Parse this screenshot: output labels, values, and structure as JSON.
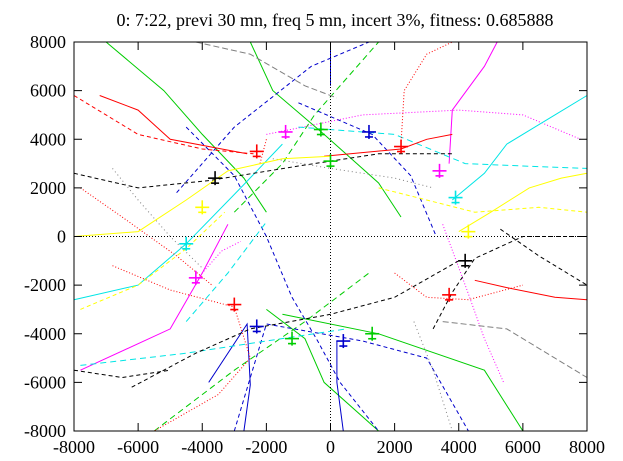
{
  "chart_data": {
    "type": "line",
    "title": "0: 7:22, previ 30 mn, freq 5 mn, incert 3%, fitness: 0.685888",
    "xlabel": "",
    "ylabel": "",
    "xlim": [
      -8000,
      8000
    ],
    "ylim": [
      -8000,
      8000
    ],
    "x_ticks": [
      "-8000",
      "-6000",
      "-4000",
      "-2000",
      "0",
      "2000",
      "4000",
      "6000",
      "8000"
    ],
    "y_ticks": [
      "8000",
      "6000",
      "4000",
      "2000",
      "0",
      "-2000",
      "-4000",
      "-6000",
      "-8000"
    ],
    "grid": false,
    "zero_axes": true,
    "series": [
      {
        "color": "#00cc00",
        "dash": "",
        "points": [
          [
            -7000,
            8000
          ],
          [
            -5200,
            6000
          ],
          [
            -4000,
            4200
          ],
          [
            -2700,
            2400
          ],
          [
            -2000,
            1000
          ]
        ]
      },
      {
        "color": "#00cc00",
        "dash": "",
        "points": [
          [
            -2500,
            8000
          ],
          [
            -1800,
            6000
          ],
          [
            -200,
            4200
          ],
          [
            1500,
            2200
          ],
          [
            2200,
            800
          ]
        ]
      },
      {
        "color": "#00cc00",
        "dash": "",
        "points": [
          [
            -2000,
            -3000
          ],
          [
            -800,
            -4200
          ],
          [
            -200,
            -6000
          ],
          [
            1500,
            -8000
          ]
        ]
      },
      {
        "color": "#00cc00",
        "dash": "",
        "points": [
          [
            -1500,
            -3200
          ],
          [
            1500,
            -4000
          ],
          [
            4800,
            -5500
          ],
          [
            6000,
            -8000
          ]
        ]
      },
      {
        "color": "#00cc00",
        "dash": "6,4",
        "points": [
          [
            -5500,
            -8000
          ],
          [
            -3000,
            -5500
          ],
          [
            -800,
            -3500
          ],
          [
            1200,
            -1500
          ]
        ]
      },
      {
        "color": "#00cc00",
        "dash": "6,4",
        "points": [
          [
            -3000,
            1000
          ],
          [
            -1500,
            3000
          ],
          [
            -500,
            5000
          ],
          [
            1500,
            8000
          ]
        ]
      },
      {
        "color": "#0000cc",
        "dash": "",
        "points": [
          [
            -3800,
            -6000
          ],
          [
            -2600,
            -3600
          ],
          [
            -2500,
            -6100
          ],
          [
            -2700,
            -8000
          ]
        ]
      },
      {
        "color": "#0000cc",
        "dash": "",
        "points": [
          [
            200,
            -4300
          ],
          [
            200,
            -6000
          ],
          [
            400,
            -8000
          ]
        ]
      },
      {
        "color": "#0000cc",
        "dash": "",
        "points": [
          [
            0,
            6200
          ],
          [
            0,
            8000
          ]
        ]
      },
      {
        "color": "#0000cc",
        "dash": "4,3",
        "points": [
          [
            -4500,
            4500
          ],
          [
            -3000,
            2500
          ],
          [
            -2000,
            0
          ],
          [
            -1200,
            -2500
          ],
          [
            -400,
            -4300
          ],
          [
            300,
            -6000
          ],
          [
            1500,
            -8000
          ]
        ]
      },
      {
        "color": "#0000cc",
        "dash": "4,3",
        "points": [
          [
            -4800,
            1800
          ],
          [
            -3000,
            4500
          ],
          [
            -600,
            7000
          ],
          [
            1200,
            8000
          ]
        ]
      },
      {
        "color": "#0000cc",
        "dash": "4,3",
        "points": [
          [
            -3000,
            -8000
          ],
          [
            -2000,
            -3600
          ],
          [
            1000,
            -4300
          ],
          [
            3000,
            -5000
          ],
          [
            4300,
            -8000
          ]
        ]
      },
      {
        "color": "#0000cc",
        "dash": "4,3",
        "points": [
          [
            -1000,
            5500
          ],
          [
            1300,
            4200
          ],
          [
            2500,
            2500
          ],
          [
            3300,
            0
          ]
        ]
      },
      {
        "color": "#ff00ff",
        "dash": "",
        "points": [
          [
            -7800,
            -5500
          ],
          [
            -5000,
            -3800
          ],
          [
            -4000,
            -1500
          ],
          [
            -3200,
            500
          ]
        ]
      },
      {
        "color": "#ff00ff",
        "dash": "",
        "points": [
          [
            3700,
            3000
          ],
          [
            3800,
            5200
          ],
          [
            4800,
            7000
          ],
          [
            5200,
            8000
          ]
        ]
      },
      {
        "color": "#ff00ff",
        "dash": "1,2",
        "points": [
          [
            -4200,
            -1800
          ],
          [
            -3400,
            -600
          ],
          [
            -2800,
            -200
          ]
        ]
      },
      {
        "color": "#ff00ff",
        "dash": "1,2",
        "points": [
          [
            3500,
            500
          ],
          [
            4200,
            -2000
          ],
          [
            4800,
            -4200
          ],
          [
            5400,
            -6000
          ]
        ]
      },
      {
        "color": "#ff00ff",
        "dash": "1,2",
        "points": [
          [
            -2000,
            4200
          ],
          [
            1000,
            5000
          ],
          [
            4000,
            5200
          ],
          [
            6000,
            5000
          ],
          [
            7800,
            4000
          ]
        ]
      },
      {
        "color": "#00e5e5",
        "dash": "",
        "points": [
          [
            -8000,
            -2600
          ],
          [
            -6000,
            -2000
          ],
          [
            -4500,
            -300
          ],
          [
            -2800,
            2000
          ],
          [
            -1500,
            3800
          ]
        ]
      },
      {
        "color": "#00e5e5",
        "dash": "",
        "points": [
          [
            3800,
            1500
          ],
          [
            4800,
            2600
          ],
          [
            5500,
            3800
          ],
          [
            7000,
            5000
          ],
          [
            8000,
            5800
          ]
        ]
      },
      {
        "color": "#00e5e5",
        "dash": "6,4",
        "points": [
          [
            -7800,
            -5300
          ],
          [
            -4500,
            -4800
          ],
          [
            -2000,
            -4300
          ],
          [
            500,
            -3800
          ]
        ]
      },
      {
        "color": "#00e5e5",
        "dash": "6,4",
        "points": [
          [
            -1000,
            4500
          ],
          [
            2000,
            4200
          ],
          [
            4200,
            3000
          ],
          [
            6000,
            2900
          ],
          [
            8000,
            2800
          ]
        ]
      },
      {
        "color": "#00e5e5",
        "dash": "6,4",
        "points": [
          [
            -4500,
            -3500
          ],
          [
            -3200,
            -1500
          ],
          [
            -2000,
            600
          ]
        ]
      },
      {
        "color": "#ff0000",
        "dash": "",
        "points": [
          [
            -7200,
            5800
          ],
          [
            -6000,
            5200
          ],
          [
            -5000,
            4000
          ],
          [
            -2600,
            3400
          ]
        ]
      },
      {
        "color": "#ff0000",
        "dash": "",
        "points": [
          [
            -200,
            3300
          ],
          [
            2200,
            3600
          ],
          [
            3000,
            4000
          ],
          [
            3800,
            4200
          ]
        ]
      },
      {
        "color": "#ff0000",
        "dash": "",
        "points": [
          [
            4500,
            -1800
          ],
          [
            5500,
            -2100
          ],
          [
            7000,
            -2500
          ],
          [
            8000,
            -2600
          ]
        ]
      },
      {
        "color": "#ff0000",
        "dash": "1,2",
        "points": [
          [
            -6800,
            -1200
          ],
          [
            -5000,
            -2200
          ],
          [
            -3000,
            -2900
          ],
          [
            -2500,
            -5000
          ],
          [
            -3500,
            -6500
          ],
          [
            -5500,
            -8000
          ]
        ]
      },
      {
        "color": "#ff0000",
        "dash": "1,2",
        "points": [
          [
            2200,
            3800
          ],
          [
            2300,
            6000
          ],
          [
            3000,
            7500
          ],
          [
            3800,
            8000
          ]
        ]
      },
      {
        "color": "#ff0000",
        "dash": "1,2",
        "points": [
          [
            2000,
            -1500
          ],
          [
            3000,
            -2500
          ],
          [
            4300,
            -2600
          ],
          [
            6000,
            -2000
          ]
        ]
      },
      {
        "color": "#ff0000",
        "dash": "1,2",
        "points": [
          [
            -7800,
            2000
          ],
          [
            -6500,
            800
          ],
          [
            -4800,
            -800
          ],
          [
            -3700,
            -2000
          ]
        ]
      },
      {
        "color": "#ff0000",
        "dash": "1,2",
        "points": [
          [
            -2000,
            4000
          ],
          [
            -2200,
            3000
          ]
        ]
      },
      {
        "color": "#ff0000",
        "dash": "4,3",
        "points": [
          [
            -8000,
            5800
          ],
          [
            -6000,
            4200
          ],
          [
            -4000,
            3600
          ],
          [
            -2400,
            3400
          ]
        ]
      },
      {
        "color": "#000000",
        "dash": "4,3",
        "points": [
          [
            -8000,
            2600
          ],
          [
            -6000,
            2000
          ],
          [
            -3800,
            2300
          ],
          [
            -1000,
            2900
          ],
          [
            1500,
            3400
          ],
          [
            3800,
            3400
          ]
        ]
      },
      {
        "color": "#000000",
        "dash": "4,3",
        "points": [
          [
            -6200,
            -6200
          ],
          [
            -4200,
            -4800
          ],
          [
            -2500,
            -3800
          ],
          [
            0,
            -3200
          ],
          [
            2000,
            -2500
          ],
          [
            4000,
            -1000
          ]
        ]
      },
      {
        "color": "#000000",
        "dash": "4,3",
        "points": [
          [
            -8000,
            -5500
          ],
          [
            -6500,
            -5800
          ],
          [
            -5000,
            -5500
          ]
        ]
      },
      {
        "color": "#000000",
        "dash": "4,3",
        "points": [
          [
            3200,
            -3800
          ],
          [
            3800,
            -2300
          ],
          [
            4500,
            -900
          ],
          [
            6000,
            0
          ],
          [
            7800,
            0
          ]
        ]
      },
      {
        "color": "#000000",
        "dash": "4,3",
        "points": [
          [
            5300,
            300
          ],
          [
            6500,
            -800
          ],
          [
            8000,
            -2000
          ]
        ]
      },
      {
        "color": "#808080",
        "dash": "6,3",
        "points": [
          [
            -4200,
            8000
          ],
          [
            -2500,
            7500
          ],
          [
            -800,
            6200
          ],
          [
            200,
            5700
          ]
        ]
      },
      {
        "color": "#808080",
        "dash": "6,3",
        "points": [
          [
            3500,
            -3500
          ],
          [
            5500,
            -3800
          ],
          [
            7000,
            -5000
          ],
          [
            8000,
            -5800
          ]
        ]
      },
      {
        "color": "#808080",
        "dash": "1,3",
        "points": [
          [
            -6800,
            2800
          ],
          [
            -6000,
            1500
          ],
          [
            -5000,
            0
          ],
          [
            -4000,
            -1300
          ]
        ]
      },
      {
        "color": "#808080",
        "dash": "1,3",
        "points": [
          [
            -1800,
            3200
          ],
          [
            0,
            2800
          ],
          [
            2000,
            2400
          ],
          [
            3200,
            2000
          ]
        ]
      },
      {
        "color": "#808080",
        "dash": "1,3",
        "points": [
          [
            2600,
            -3500
          ],
          [
            3200,
            -5500
          ],
          [
            3800,
            -8000
          ]
        ]
      },
      {
        "color": "#ffff00",
        "dash": "",
        "points": [
          [
            -8000,
            0
          ],
          [
            -6000,
            200
          ],
          [
            -4500,
            1500
          ],
          [
            -3200,
            2700
          ],
          [
            -1500,
            3200
          ],
          [
            0,
            3300
          ]
        ]
      },
      {
        "color": "#ffff00",
        "dash": "",
        "points": [
          [
            4000,
            200
          ],
          [
            5000,
            1000
          ],
          [
            6200,
            2000
          ],
          [
            7200,
            2400
          ],
          [
            8000,
            2600
          ]
        ]
      },
      {
        "color": "#ffff00",
        "dash": "4,3",
        "points": [
          [
            -7800,
            -3000
          ],
          [
            -6000,
            -2000
          ],
          [
            -4500,
            -500
          ],
          [
            -3300,
            1000
          ]
        ]
      },
      {
        "color": "#ffff00",
        "dash": "4,3",
        "points": [
          [
            1500,
            2000
          ],
          [
            3000,
            1500
          ],
          [
            4500,
            1000
          ],
          [
            6500,
            1200
          ],
          [
            8000,
            1000
          ]
        ]
      }
    ],
    "aircraft": [
      {
        "color": "#ff0000",
        "x": -2300,
        "y": 3500
      },
      {
        "color": "#ff0000",
        "x": 2200,
        "y": 3700
      },
      {
        "color": "#ff0000",
        "x": -3000,
        "y": -2800
      },
      {
        "color": "#ff0000",
        "x": 3700,
        "y": -2400
      },
      {
        "color": "#0000cc",
        "x": 1200,
        "y": 4300
      },
      {
        "color": "#0000cc",
        "x": -2300,
        "y": -3700
      },
      {
        "color": "#0000cc",
        "x": 400,
        "y": -4300
      },
      {
        "color": "#00cc00",
        "x": -300,
        "y": 4400
      },
      {
        "color": "#00cc00",
        "x": -1200,
        "y": -4200
      },
      {
        "color": "#00cc00",
        "x": 1300,
        "y": -4000
      },
      {
        "color": "#ff00ff",
        "x": -1400,
        "y": 4300
      },
      {
        "color": "#ff00ff",
        "x": 3400,
        "y": 2700
      },
      {
        "color": "#ff00ff",
        "x": -4200,
        "y": -1700
      },
      {
        "color": "#00e5e5",
        "x": 3900,
        "y": 1600
      },
      {
        "color": "#00e5e5",
        "x": -4500,
        "y": -300
      },
      {
        "color": "#000000",
        "x": -3600,
        "y": 2400
      },
      {
        "color": "#000000",
        "x": 4200,
        "y": -1000
      },
      {
        "color": "#ffff00",
        "x": -4000,
        "y": 1200
      },
      {
        "color": "#ffff00",
        "x": 4300,
        "y": 200
      },
      {
        "color": "#00cc00",
        "x": 0,
        "y": 3100
      }
    ]
  }
}
